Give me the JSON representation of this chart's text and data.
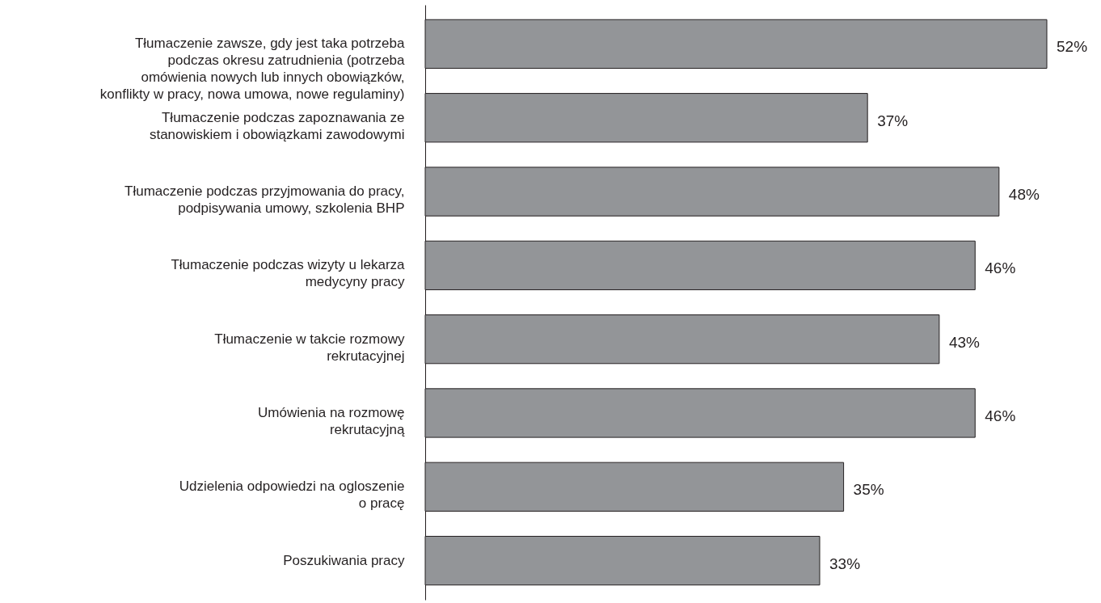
{
  "chart_data": {
    "type": "bar",
    "orientation": "horizontal",
    "categories": [
      "Tłumaczenie zawsze, gdy jest taka potrzeba\npodczas okresu zatrudnienia (potrzeba\nomówienia nowych lub innych obowiązków,\nkonflikty w pracy, nowa umowa, nowe regulaminy)",
      "Tłumaczenie podczas zapoznawania ze\nstanowiskiem i obowiązkami zawodowymi",
      "Tłumaczenie podczas przyjmowania do pracy,\npodpisywania umowy, szkolenia BHP",
      "Tłumaczenie podczas wizyty u lekarza\nmedycyny pracy",
      "Tłumaczenie w takcie rozmowy\nrekrutacyjnej",
      "Umówienia na rozmowę\nrekrutacyjną",
      "Udzielenia odpowiedzi na ogloszenie\no pracę",
      "Poszukiwania pracy"
    ],
    "values": [
      52,
      37,
      48,
      46,
      43,
      46,
      35,
      33
    ],
    "value_labels": [
      "52%",
      "37%",
      "48%",
      "46%",
      "43%",
      "46%",
      "35%",
      "33%"
    ],
    "color": "#939598",
    "tick_labels": "y"
  }
}
